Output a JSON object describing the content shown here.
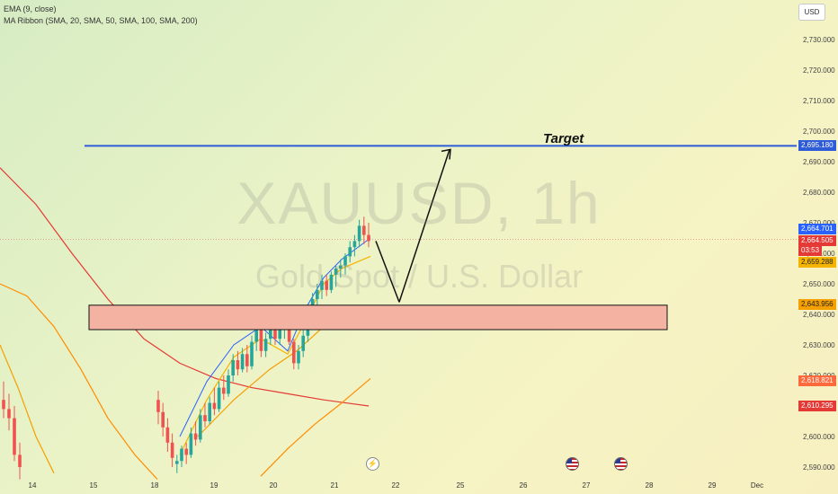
{
  "legend": {
    "ema": "EMA (9, close)",
    "ribbon": "MA Ribbon (SMA, 20, SMA, 50, SMA, 100, SMA, 200)"
  },
  "currency_button": "USD",
  "watermark": {
    "title": "XAUUSD, 1h",
    "subtitle": "Gold Spot / U.S. Dollar"
  },
  "annotations": {
    "target_label": "Target"
  },
  "price_tags": {
    "target": "2,695.180",
    "ema9": "2,664.701",
    "last": "2,664.505",
    "countdown": "03:53",
    "sma20": "2,659.288",
    "sma50": "2,643.956",
    "sma100": "2,618.821",
    "sma200": "2,610.295"
  },
  "colors": {
    "up": "#26a69a",
    "down": "#ef5350",
    "ema": "#2962ff",
    "sma20": "#f5b400",
    "sma50": "#f59f00",
    "sma100": "#ff8c00",
    "sma200": "#e53935",
    "target_line": "#2e5bd8",
    "zone_fill": "#f4b3a2",
    "zone_border": "#111111"
  },
  "chart_data": {
    "type": "candlestick",
    "symbol": "XAUUSD",
    "timeframe": "1h",
    "yaxis": {
      "ticks": [
        "2,590.000",
        "2,600.000",
        "2,610.000",
        "2,620.000",
        "2,630.000",
        "2,640.000",
        "2,650.000",
        "2,660.000",
        "2,670.000",
        "2,680.000",
        "2,690.000",
        "2,700.000",
        "2,710.000",
        "2,720.000",
        "2,730.000"
      ],
      "ylim": [
        2589,
        2737
      ]
    },
    "xaxis": {
      "ticks": [
        "14",
        "15",
        "18",
        "19",
        "20",
        "21",
        "22",
        "25",
        "26",
        "27",
        "28",
        "29",
        "Dec"
      ]
    },
    "target_price": 2695.18,
    "support_zone": [
      2635,
      2643
    ],
    "candles": [
      [
        2612,
        2615,
        2604,
        2608
      ],
      [
        2608,
        2611,
        2600,
        2603
      ],
      [
        2603,
        2606,
        2595,
        2598
      ],
      [
        2598,
        2601,
        2590,
        2593
      ],
      [
        2591,
        2594,
        2588,
        2592
      ],
      [
        2592,
        2597,
        2590,
        2596
      ],
      [
        2596,
        2598,
        2591,
        2594
      ],
      [
        2594,
        2603,
        2593,
        2601
      ],
      [
        2601,
        2605,
        2597,
        2599
      ],
      [
        2599,
        2609,
        2598,
        2607
      ],
      [
        2607,
        2611,
        2603,
        2605
      ],
      [
        2605,
        2613,
        2604,
        2611
      ],
      [
        2611,
        2616,
        2607,
        2609
      ],
      [
        2609,
        2618,
        2608,
        2616
      ],
      [
        2616,
        2620,
        2612,
        2614
      ],
      [
        2614,
        2622,
        2613,
        2620
      ],
      [
        2620,
        2627,
        2618,
        2625
      ],
      [
        2625,
        2628,
        2620,
        2622
      ],
      [
        2622,
        2629,
        2621,
        2627
      ],
      [
        2627,
        2630,
        2621,
        2623
      ],
      [
        2623,
        2633,
        2622,
        2631
      ],
      [
        2631,
        2638,
        2628,
        2635
      ],
      [
        2635,
        2637,
        2626,
        2628
      ],
      [
        2628,
        2634,
        2626,
        2632
      ],
      [
        2632,
        2639,
        2630,
        2636
      ],
      [
        2636,
        2638,
        2630,
        2632
      ],
      [
        2632,
        2637,
        2630,
        2635
      ],
      [
        2635,
        2641,
        2632,
        2639
      ],
      [
        2639,
        2640,
        2630,
        2631
      ],
      [
        2631,
        2632,
        2622,
        2624
      ],
      [
        2624,
        2630,
        2622,
        2628
      ],
      [
        2628,
        2635,
        2626,
        2633
      ],
      [
        2633,
        2641,
        2631,
        2640
      ],
      [
        2640,
        2647,
        2638,
        2645
      ],
      [
        2645,
        2650,
        2642,
        2648
      ],
      [
        2648,
        2653,
        2645,
        2651
      ],
      [
        2651,
        2653,
        2646,
        2648
      ],
      [
        2648,
        2654,
        2647,
        2653
      ],
      [
        2653,
        2656,
        2649,
        2655
      ],
      [
        2655,
        2658,
        2652,
        2656
      ],
      [
        2656,
        2660,
        2653,
        2659
      ],
      [
        2659,
        2664,
        2657,
        2662
      ],
      [
        2662,
        2666,
        2659,
        2664
      ],
      [
        2664,
        2671,
        2662,
        2669
      ],
      [
        2669,
        2672,
        2663,
        2666
      ],
      [
        2666,
        2670,
        2662,
        2664
      ]
    ],
    "projection": [
      [
        2664,
        2644
      ],
      [
        2644,
        2694
      ]
    ]
  }
}
